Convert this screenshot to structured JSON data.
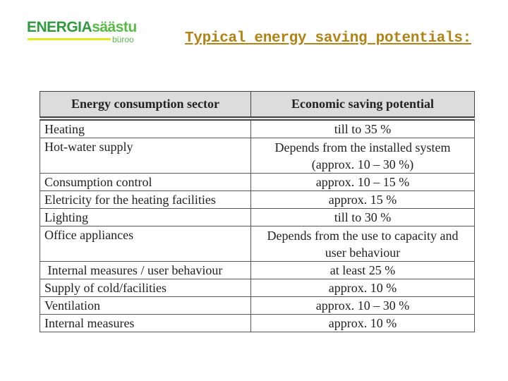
{
  "logo": {
    "brand_a": "ENERGIA",
    "brand_b": "sääst",
    "brand_c": "u",
    "sub": "büroo"
  },
  "title": "Typical energy saving potentials:",
  "table": {
    "headers": [
      "Energy consumption sector",
      "Economic saving potential"
    ],
    "rows": [
      {
        "sector": "Heating",
        "saving": "till to 35 %"
      },
      {
        "sector": "Hot-water supply",
        "saving": "Depends from the installed system (approx. 10 – 30 %)"
      },
      {
        "sector": "Consumption control",
        "saving": "approx. 10 – 15 %"
      },
      {
        "sector": "Eletricity for the heating facilities",
        "saving": "approx. 15 %"
      },
      {
        "sector": "Lighting",
        "saving": "till to 30 %"
      },
      {
        "sector": "Office appliances",
        "saving": "Depends from the use to capacity and user behaviour"
      },
      {
        "sector": " Internal measures / user behaviour",
        "saving": "at least 25 %"
      },
      {
        "sector": "Supply of cold/facilities",
        "saving": "approx. 10 %"
      },
      {
        "sector": "Ventilation",
        "saving": "approx. 10 – 30 %"
      },
      {
        "sector": "Internal measures",
        "saving": "approx. 10 %"
      }
    ]
  }
}
